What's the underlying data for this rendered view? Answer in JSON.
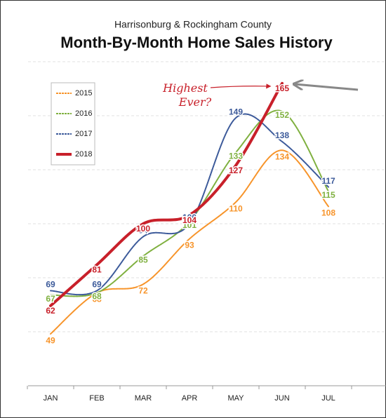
{
  "chart_data": {
    "type": "line",
    "subtitle": "Harrisonburg & Rockingham County",
    "title": "Month-By-Month Home Sales History",
    "categories": [
      "JAN",
      "FEB",
      "MAR",
      "APR",
      "MAY",
      "JUN",
      "JUL"
    ],
    "series": [
      {
        "name": "2015",
        "color": "#f7942a",
        "values": [
          49,
          68,
          72,
          93,
          110,
          134,
          108
        ]
      },
      {
        "name": "2016",
        "color": "#7fb03f",
        "values": [
          67,
          68,
          85,
          101,
          133,
          152,
          115
        ]
      },
      {
        "name": "2017",
        "color": "#3c5a9a",
        "values": [
          69,
          69,
          94,
          100,
          149,
          138,
          117
        ]
      },
      {
        "name": "2018",
        "color": "#c8202a",
        "values": [
          62,
          81,
          100,
          104,
          127,
          165,
          null
        ]
      }
    ],
    "ylim": [
      25,
      175
    ],
    "yticks": [
      50,
      75,
      100,
      125,
      150,
      175
    ],
    "grid": true,
    "legend": "upper left",
    "annotation": "Highest Ever?"
  }
}
